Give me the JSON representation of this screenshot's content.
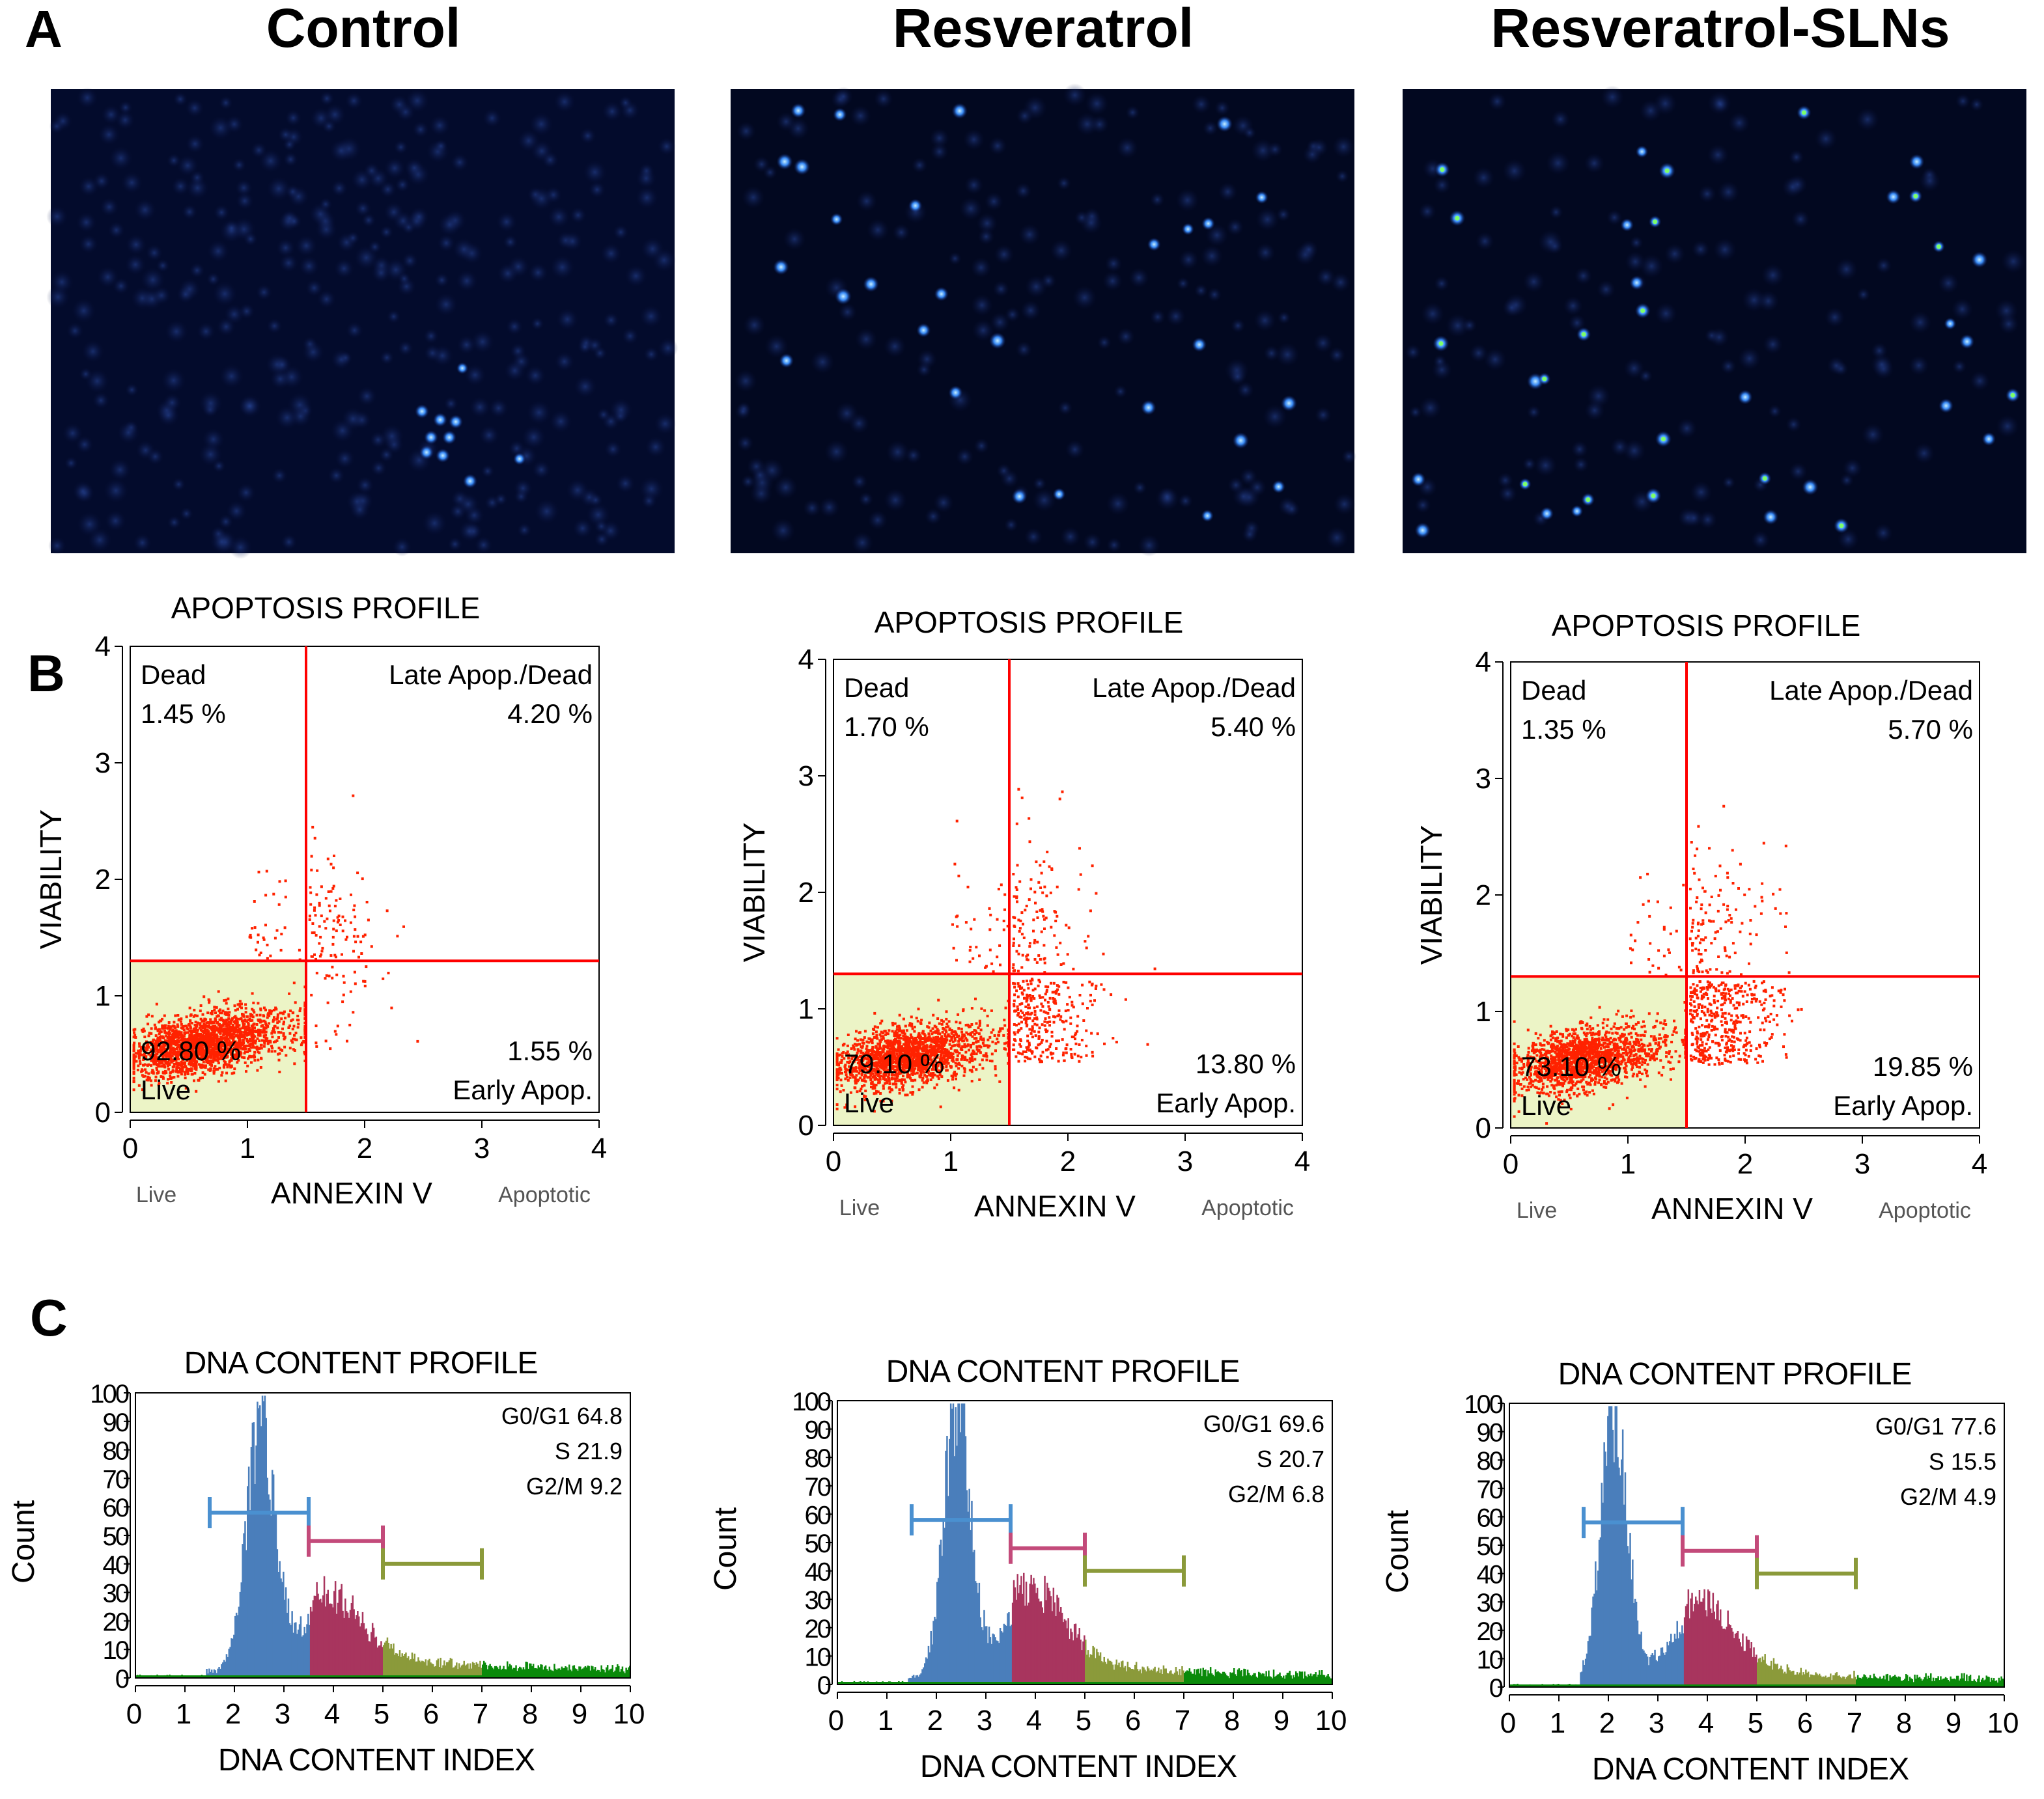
{
  "figure": {
    "panel_letters": [
      "A",
      "B",
      "C"
    ],
    "conditions": [
      "Control",
      "Resveratrol",
      "Resveratrol-SLNs"
    ],
    "colors": {
      "scatter": "#ff2200",
      "quad_line": "#ff0000",
      "live_fill": "#ecf4c6",
      "g1": "#4a7ebb",
      "s": "#a8355e",
      "g2m": "#8b9a3a",
      "debris": "#0a8a0a",
      "marker_g1": "#4a90d0",
      "marker_s": "#c34a7a",
      "marker_g2m": "#8b9a3a"
    }
  },
  "chart_data": [
    {
      "type": "image",
      "panel": "A",
      "condition": "Control",
      "description_stain": "nuclear fluorescence micrograph"
    },
    {
      "type": "image",
      "panel": "A",
      "condition": "Resveratrol"
    },
    {
      "type": "image",
      "panel": "A",
      "condition": "Resveratrol-SLNs"
    },
    {
      "type": "scatter",
      "panel": "B",
      "condition": "Control",
      "title": "APOPTOSIS PROFILE",
      "xlabel": "ANNEXIN V",
      "ylabel": "VIABILITY",
      "x_left_label": "Live",
      "x_right_label": "Apoptotic",
      "xlim": [
        0,
        4
      ],
      "ylim": [
        0,
        4
      ],
      "xticks": [
        0,
        1,
        2,
        3,
        4
      ],
      "yticks": [
        0,
        1,
        2,
        3,
        4
      ],
      "gate_x": 1.5,
      "gate_y": 1.3,
      "quadrants": {
        "dead": {
          "label": "Dead",
          "value": "1.45 %"
        },
        "late": {
          "label": "Late Apop./Dead",
          "value": "4.20 %"
        },
        "live": {
          "label": "Live",
          "value": "92.80 %"
        },
        "early": {
          "label": "Early Apop.",
          "value": "1.55 %"
        }
      },
      "percentages": {
        "live": 92.8,
        "early": 1.55,
        "late": 4.2,
        "dead": 1.45
      }
    },
    {
      "type": "scatter",
      "panel": "B",
      "condition": "Resveratrol",
      "title": "APOPTOSIS PROFILE",
      "xlabel": "ANNEXIN V",
      "ylabel": "VIABILITY",
      "x_left_label": "Live",
      "x_right_label": "Apoptotic",
      "xlim": [
        0,
        4
      ],
      "ylim": [
        0,
        4
      ],
      "xticks": [
        0,
        1,
        2,
        3,
        4
      ],
      "yticks": [
        0,
        1,
        2,
        3,
        4
      ],
      "gate_x": 1.5,
      "gate_y": 1.3,
      "quadrants": {
        "dead": {
          "label": "Dead",
          "value": "1.70 %"
        },
        "late": {
          "label": "Late Apop./Dead",
          "value": "5.40 %"
        },
        "live": {
          "label": "Live",
          "value": "79.10 %"
        },
        "early": {
          "label": "Early Apop.",
          "value": "13.80 %"
        }
      },
      "percentages": {
        "live": 79.1,
        "early": 13.8,
        "late": 5.4,
        "dead": 1.7
      }
    },
    {
      "type": "scatter",
      "panel": "B",
      "condition": "Resveratrol-SLNs",
      "title": "APOPTOSIS PROFILE",
      "xlabel": "ANNEXIN V",
      "ylabel": "VIABILITY",
      "x_left_label": "Live",
      "x_right_label": "Apoptotic",
      "xlim": [
        0,
        4
      ],
      "ylim": [
        0,
        4
      ],
      "xticks": [
        0,
        1,
        2,
        3,
        4
      ],
      "yticks": [
        0,
        1,
        2,
        3,
        4
      ],
      "gate_x": 1.5,
      "gate_y": 1.3,
      "quadrants": {
        "dead": {
          "label": "Dead",
          "value": "1.35 %"
        },
        "late": {
          "label": "Late Apop./Dead",
          "value": "5.70 %"
        },
        "live": {
          "label": "Live",
          "value": "73.10 %"
        },
        "early": {
          "label": "Early Apop.",
          "value": "19.85 %"
        }
      },
      "percentages": {
        "live": 73.1,
        "early": 19.85,
        "late": 5.7,
        "dead": 1.35
      }
    },
    {
      "type": "histogram",
      "panel": "C",
      "condition": "Control",
      "title": "DNA CONTENT PROFILE",
      "xlabel": "DNA CONTENT INDEX",
      "ylabel": "Count",
      "xlim": [
        0,
        10
      ],
      "ylim": [
        0,
        100
      ],
      "xticks": [
        0,
        1,
        2,
        3,
        4,
        5,
        6,
        7,
        8,
        9,
        10
      ],
      "yticks": [
        0,
        10,
        20,
        30,
        40,
        50,
        60,
        70,
        80,
        90,
        100
      ],
      "stats": [
        "G0/G1 64.8",
        "S 21.9",
        "G2/M 9.2"
      ],
      "phases": {
        "G0/G1": 64.8,
        "S": 21.9,
        "G2/M": 9.2
      },
      "gates": {
        "g1": [
          1.5,
          3.5,
          58
        ],
        "s": [
          3.5,
          5.0,
          48
        ],
        "g2m": [
          5.0,
          7.0,
          40
        ]
      },
      "peaks": {
        "g1_center": 2.5,
        "g1_height": 87,
        "g1_width": 0.28,
        "s_level": 20,
        "g2m_level": 8
      }
    },
    {
      "type": "histogram",
      "panel": "C",
      "condition": "Resveratrol",
      "title": "DNA CONTENT PROFILE",
      "xlabel": "DNA CONTENT INDEX",
      "ylabel": "Count",
      "xlim": [
        0,
        10
      ],
      "ylim": [
        0,
        100
      ],
      "xticks": [
        0,
        1,
        2,
        3,
        4,
        5,
        6,
        7,
        8,
        9,
        10
      ],
      "yticks": [
        0,
        10,
        20,
        30,
        40,
        50,
        60,
        70,
        80,
        90,
        100
      ],
      "stats": [
        "G0/G1 69.6",
        "S 20.7",
        "G2/M 6.8"
      ],
      "phases": {
        "G0/G1": 69.6,
        "S": 20.7,
        "G2/M": 6.8
      },
      "gates": {
        "g1": [
          1.5,
          3.5,
          58
        ],
        "s": [
          3.5,
          5.0,
          48
        ],
        "g2m": [
          5.0,
          7.0,
          40
        ]
      },
      "peaks": {
        "g1_center": 2.4,
        "g1_height": 98,
        "g1_width": 0.26,
        "s_level": 24,
        "g2m_level": 9
      }
    },
    {
      "type": "histogram",
      "panel": "C",
      "condition": "Resveratrol-SLNs",
      "title": "DNA CONTENT PROFILE",
      "xlabel": "DNA CONTENT INDEX",
      "ylabel": "Count",
      "xlim": [
        0,
        10
      ],
      "ylim": [
        0,
        100
      ],
      "xticks": [
        0,
        1,
        2,
        3,
        4,
        5,
        6,
        7,
        8,
        9,
        10
      ],
      "yticks": [
        0,
        10,
        20,
        30,
        40,
        50,
        60,
        70,
        80,
        90,
        100
      ],
      "stats": [
        "G0/G1 77.6",
        "S 15.5",
        "G2/M 4.9"
      ],
      "phases": {
        "G0/G1": 77.6,
        "S": 15.5,
        "G2/M": 4.9
      },
      "gates": {
        "g1": [
          1.5,
          3.5,
          58
        ],
        "s": [
          3.5,
          5.0,
          48
        ],
        "g2m": [
          5.0,
          7.0,
          40
        ]
      },
      "peaks": {
        "g1_center": 2.1,
        "g1_height": 95,
        "g1_width": 0.26,
        "s_level": 22,
        "g2m_level": 6
      }
    }
  ]
}
